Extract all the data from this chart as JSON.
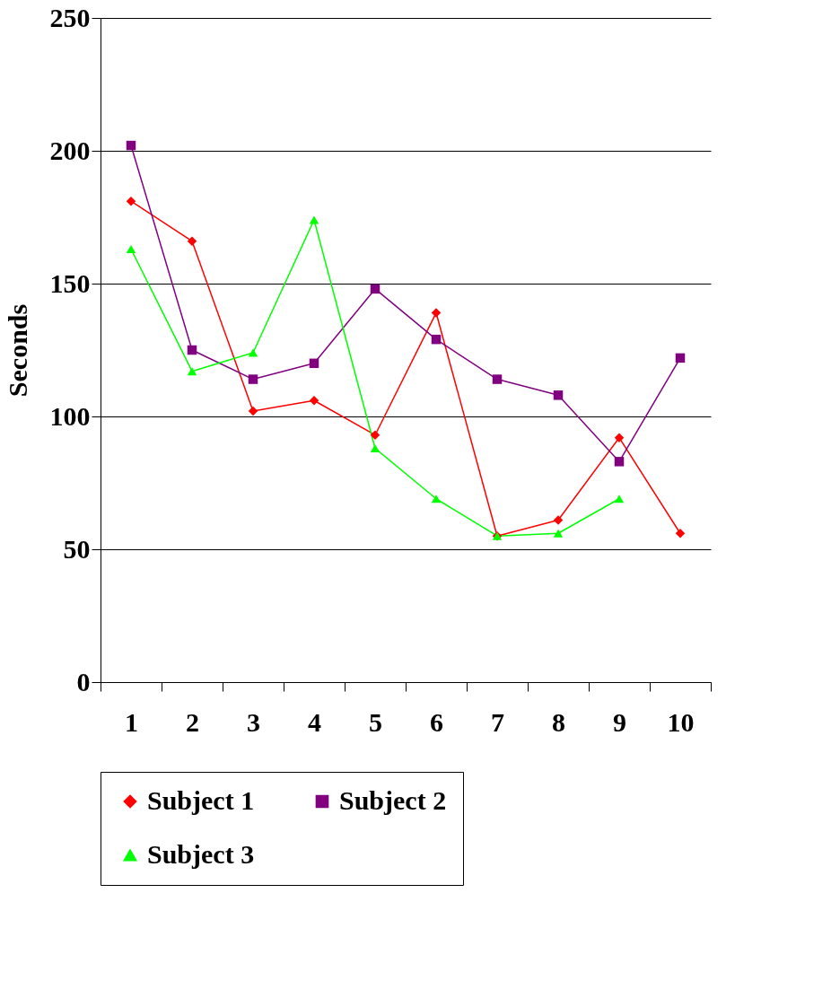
{
  "chart_data": {
    "type": "line",
    "ylabel": "Seconds",
    "categories": [
      "1",
      "2",
      "3",
      "4",
      "5",
      "6",
      "7",
      "8",
      "9",
      "10"
    ],
    "series": [
      {
        "name": "Subject 1",
        "color": "#ff0000",
        "marker": "diamond",
        "values": [
          181,
          166,
          102,
          106,
          93,
          139,
          55,
          61,
          92,
          56
        ]
      },
      {
        "name": "Subject 2",
        "color": "#800080",
        "marker": "square",
        "values": [
          202,
          125,
          114,
          120,
          148,
          129,
          114,
          108,
          83,
          122
        ]
      },
      {
        "name": "Subject 3",
        "color": "#00ff00",
        "marker": "triangle",
        "values": [
          163,
          117,
          124,
          174,
          88,
          69,
          55,
          56,
          69,
          null
        ]
      }
    ],
    "ylim": [
      0,
      250
    ],
    "yticks": [
      0,
      50,
      100,
      150,
      200,
      250
    ],
    "grid": "y",
    "legend": "bottom",
    "line_style": "solid"
  }
}
